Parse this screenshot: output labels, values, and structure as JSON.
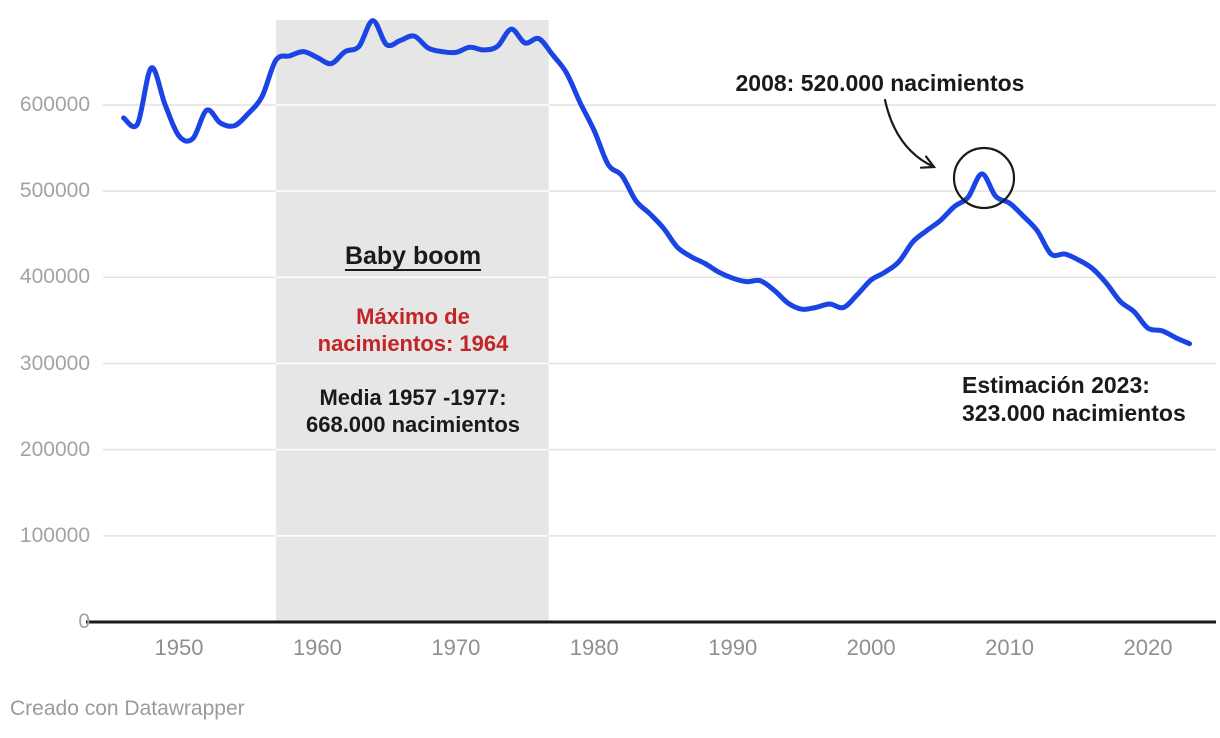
{
  "chart_data": {
    "type": "line",
    "title": "",
    "xlabel": "",
    "ylabel": "",
    "years": [
      1946,
      1947,
      1948,
      1949,
      1950,
      1951,
      1952,
      1953,
      1954,
      1955,
      1956,
      1957,
      1958,
      1959,
      1960,
      1961,
      1962,
      1963,
      1964,
      1965,
      1966,
      1967,
      1968,
      1969,
      1970,
      1971,
      1972,
      1973,
      1974,
      1975,
      1976,
      1977,
      1978,
      1979,
      1980,
      1981,
      1982,
      1983,
      1984,
      1985,
      1986,
      1987,
      1988,
      1989,
      1990,
      1991,
      1992,
      1993,
      1994,
      1995,
      1996,
      1997,
      1998,
      1999,
      2000,
      2001,
      2002,
      2003,
      2004,
      2005,
      2006,
      2007,
      2008,
      2009,
      2010,
      2011,
      2012,
      2013,
      2014,
      2015,
      2016,
      2017,
      2018,
      2019,
      2020,
      2021,
      2022,
      2023
    ],
    "series": [
      {
        "name": "nacimientos",
        "values": [
          585000,
          578000,
          643000,
          600000,
          564000,
          561000,
          594000,
          579000,
          576000,
          590000,
          610000,
          652000,
          657000,
          662000,
          655000,
          648000,
          662000,
          668000,
          698000,
          670000,
          675000,
          680000,
          666000,
          662000,
          661000,
          667000,
          664000,
          668000,
          688000,
          672000,
          677000,
          658000,
          637000,
          602000,
          570000,
          531000,
          518000,
          489000,
          474000,
          457000,
          435000,
          424000,
          416000,
          406000,
          399000,
          395000,
          396000,
          385000,
          370000,
          363000,
          365000,
          369000,
          365000,
          380000,
          397000,
          406000,
          418000,
          441000,
          454000,
          466000,
          482000,
          493000,
          520000,
          494000,
          486000,
          471000,
          454000,
          427000,
          427000,
          420000,
          410000,
          393000,
          372000,
          360000,
          341000,
          338000,
          330000,
          323000
        ]
      }
    ],
    "ylim": [
      0,
      700000
    ],
    "xlim": [
      1945.5,
      2023.5
    ],
    "y_ticks": [
      0,
      100000,
      200000,
      300000,
      400000,
      500000,
      600000
    ],
    "x_ticks": [
      1950,
      1960,
      1970,
      1980,
      1990,
      2000,
      2010,
      2020
    ],
    "grid": "horizontal",
    "legend": "none",
    "line_color": "#1a44e4",
    "highlight_range": {
      "from": 1957,
      "to": 1977,
      "color": "#e6e6e6"
    },
    "grid_color": "#e2e2e2",
    "axis_color": "#1a1a1a",
    "annotations": {
      "baby_boom_title": "Baby boom",
      "max_line1": "Máximo de",
      "max_line2": "nacimientos: 1964",
      "max_color": "#c32425",
      "media_line1": "Media 1957 -1977:",
      "media_line2": "668.000 nacimientos",
      "peak_2008": "2008: 520.000 nacimientos",
      "estimation_line1": "Estimación 2023:",
      "estimation_line2": "323.000 nacimientos"
    },
    "footer": "Creado con Datawrapper"
  }
}
